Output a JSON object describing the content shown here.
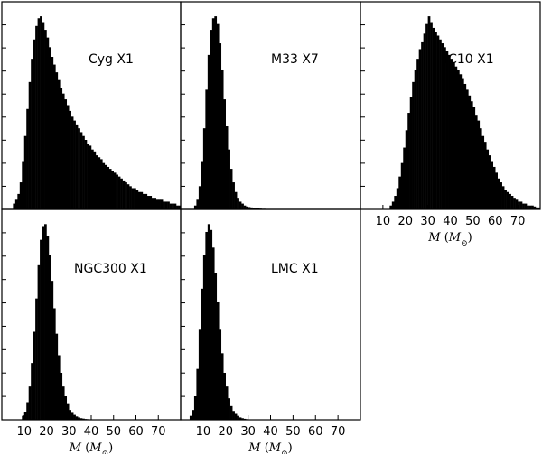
{
  "chart_data": [
    {
      "type": "histogram",
      "label": "Cyg X1",
      "xlim": [
        0,
        80
      ],
      "x_bins": [
        5,
        6,
        7,
        8,
        9,
        10,
        11,
        12,
        13,
        14,
        15,
        16,
        17,
        18,
        19,
        20,
        21,
        22,
        23,
        24,
        25,
        26,
        27,
        28,
        29,
        30,
        31,
        32,
        33,
        34,
        35,
        36,
        37,
        38,
        39,
        40,
        41,
        42,
        43,
        44,
        45,
        46,
        47,
        48,
        49,
        50,
        51,
        52,
        53,
        54,
        55,
        56,
        57,
        58,
        59,
        60,
        61,
        62,
        63,
        64,
        65,
        66,
        67,
        68,
        69,
        70,
        71,
        72,
        73,
        74,
        75,
        76,
        77,
        78,
        79
      ],
      "relative_height": [
        0.03,
        0.05,
        0.08,
        0.14,
        0.25,
        0.38,
        0.52,
        0.66,
        0.78,
        0.88,
        0.95,
        0.99,
        1.0,
        0.97,
        0.93,
        0.89,
        0.84,
        0.79,
        0.75,
        0.71,
        0.67,
        0.63,
        0.6,
        0.57,
        0.54,
        0.51,
        0.48,
        0.46,
        0.44,
        0.42,
        0.4,
        0.38,
        0.36,
        0.34,
        0.33,
        0.31,
        0.3,
        0.28,
        0.27,
        0.26,
        0.24,
        0.23,
        0.22,
        0.21,
        0.2,
        0.19,
        0.18,
        0.17,
        0.16,
        0.15,
        0.14,
        0.13,
        0.12,
        0.11,
        0.11,
        0.1,
        0.09,
        0.09,
        0.08,
        0.08,
        0.07,
        0.07,
        0.06,
        0.06,
        0.05,
        0.05,
        0.05,
        0.04,
        0.04,
        0.04,
        0.03,
        0.03,
        0.03,
        0.02,
        0.02
      ]
    },
    {
      "type": "histogram",
      "label": "M33 X7",
      "xlim": [
        0,
        80
      ],
      "x_bins": [
        6,
        7,
        8,
        9,
        10,
        11,
        12,
        13,
        14,
        15,
        16,
        17,
        18,
        19,
        20,
        21,
        22,
        23,
        24,
        25,
        26,
        27,
        28,
        29,
        30,
        31,
        32,
        33,
        34,
        35,
        36,
        37,
        38,
        39,
        40
      ],
      "relative_height": [
        0.02,
        0.05,
        0.12,
        0.25,
        0.42,
        0.62,
        0.8,
        0.93,
        0.99,
        1.0,
        0.96,
        0.86,
        0.72,
        0.57,
        0.43,
        0.31,
        0.21,
        0.14,
        0.09,
        0.06,
        0.04,
        0.03,
        0.02,
        0.015,
        0.012,
        0.01,
        0.008,
        0.006,
        0.005,
        0.004,
        0.003,
        0.003,
        0.002,
        0.002,
        0.001
      ]
    },
    {
      "type": "histogram",
      "label": "IC10 X1",
      "xlim": [
        0,
        80
      ],
      "x_ticks": [
        10,
        20,
        30,
        40,
        50,
        60,
        70
      ],
      "xlabel_var": "M",
      "xlabel_open": "(",
      "xlabel_M": "M",
      "xlabel_sun": "⊙",
      "xlabel_close": ")",
      "x_bins": [
        13,
        14,
        15,
        16,
        17,
        18,
        19,
        20,
        21,
        22,
        23,
        24,
        25,
        26,
        27,
        28,
        29,
        30,
        31,
        32,
        33,
        34,
        35,
        36,
        37,
        38,
        39,
        40,
        41,
        42,
        43,
        44,
        45,
        46,
        47,
        48,
        49,
        50,
        51,
        52,
        53,
        54,
        55,
        56,
        57,
        58,
        59,
        60,
        61,
        62,
        63,
        64,
        65,
        66,
        67,
        68,
        69,
        70,
        71,
        72,
        73,
        74,
        75,
        76,
        77,
        78,
        79
      ],
      "relative_height": [
        0.02,
        0.04,
        0.07,
        0.11,
        0.17,
        0.24,
        0.32,
        0.41,
        0.5,
        0.58,
        0.66,
        0.72,
        0.78,
        0.83,
        0.87,
        0.91,
        0.96,
        1.0,
        0.97,
        0.94,
        0.92,
        0.9,
        0.88,
        0.86,
        0.84,
        0.82,
        0.8,
        0.78,
        0.76,
        0.74,
        0.72,
        0.7,
        0.68,
        0.65,
        0.62,
        0.59,
        0.56,
        0.53,
        0.49,
        0.46,
        0.42,
        0.38,
        0.35,
        0.31,
        0.28,
        0.25,
        0.22,
        0.19,
        0.16,
        0.14,
        0.12,
        0.1,
        0.09,
        0.08,
        0.07,
        0.06,
        0.05,
        0.04,
        0.04,
        0.03,
        0.03,
        0.02,
        0.02,
        0.02,
        0.015,
        0.01,
        0.01
      ]
    },
    {
      "type": "histogram",
      "label": "NGC300 X1",
      "xlim": [
        0,
        80
      ],
      "x_ticks": [
        10,
        20,
        30,
        40,
        50,
        60,
        70
      ],
      "xlabel_var": "M",
      "xlabel_open": "(",
      "xlabel_M": "M",
      "xlabel_sun": "⊙",
      "xlabel_close": ")",
      "x_bins": [
        9,
        10,
        11,
        12,
        13,
        14,
        15,
        16,
        17,
        18,
        19,
        20,
        21,
        22,
        23,
        24,
        25,
        26,
        27,
        28,
        29,
        30,
        31,
        32,
        33,
        34,
        35,
        36,
        37,
        38,
        39,
        40
      ],
      "relative_height": [
        0.02,
        0.04,
        0.09,
        0.17,
        0.29,
        0.45,
        0.62,
        0.79,
        0.92,
        0.99,
        1.0,
        0.94,
        0.84,
        0.71,
        0.57,
        0.44,
        0.33,
        0.24,
        0.17,
        0.12,
        0.08,
        0.05,
        0.035,
        0.025,
        0.017,
        0.012,
        0.008,
        0.006,
        0.004,
        0.003,
        0.002,
        0.001
      ]
    },
    {
      "type": "histogram",
      "label": "LMC X1",
      "xlim": [
        0,
        80
      ],
      "x_ticks": [
        10,
        20,
        30,
        40,
        50,
        60,
        70
      ],
      "xlabel_var": "M",
      "xlabel_open": "(",
      "xlabel_M": "M",
      "xlabel_sun": "⊙",
      "xlabel_close": ")",
      "x_bins": [
        4,
        5,
        6,
        7,
        8,
        9,
        10,
        11,
        12,
        13,
        14,
        15,
        16,
        17,
        18,
        19,
        20,
        21,
        22,
        23,
        24,
        25,
        26,
        27,
        28,
        29,
        30
      ],
      "relative_height": [
        0.02,
        0.05,
        0.12,
        0.26,
        0.46,
        0.67,
        0.84,
        0.96,
        1.0,
        0.97,
        0.88,
        0.75,
        0.6,
        0.46,
        0.34,
        0.24,
        0.17,
        0.11,
        0.07,
        0.045,
        0.03,
        0.02,
        0.012,
        0.008,
        0.005,
        0.003,
        0.002
      ]
    }
  ],
  "colors": {
    "bar": "#000000",
    "frame": "#000000",
    "background": "#ffffff"
  }
}
